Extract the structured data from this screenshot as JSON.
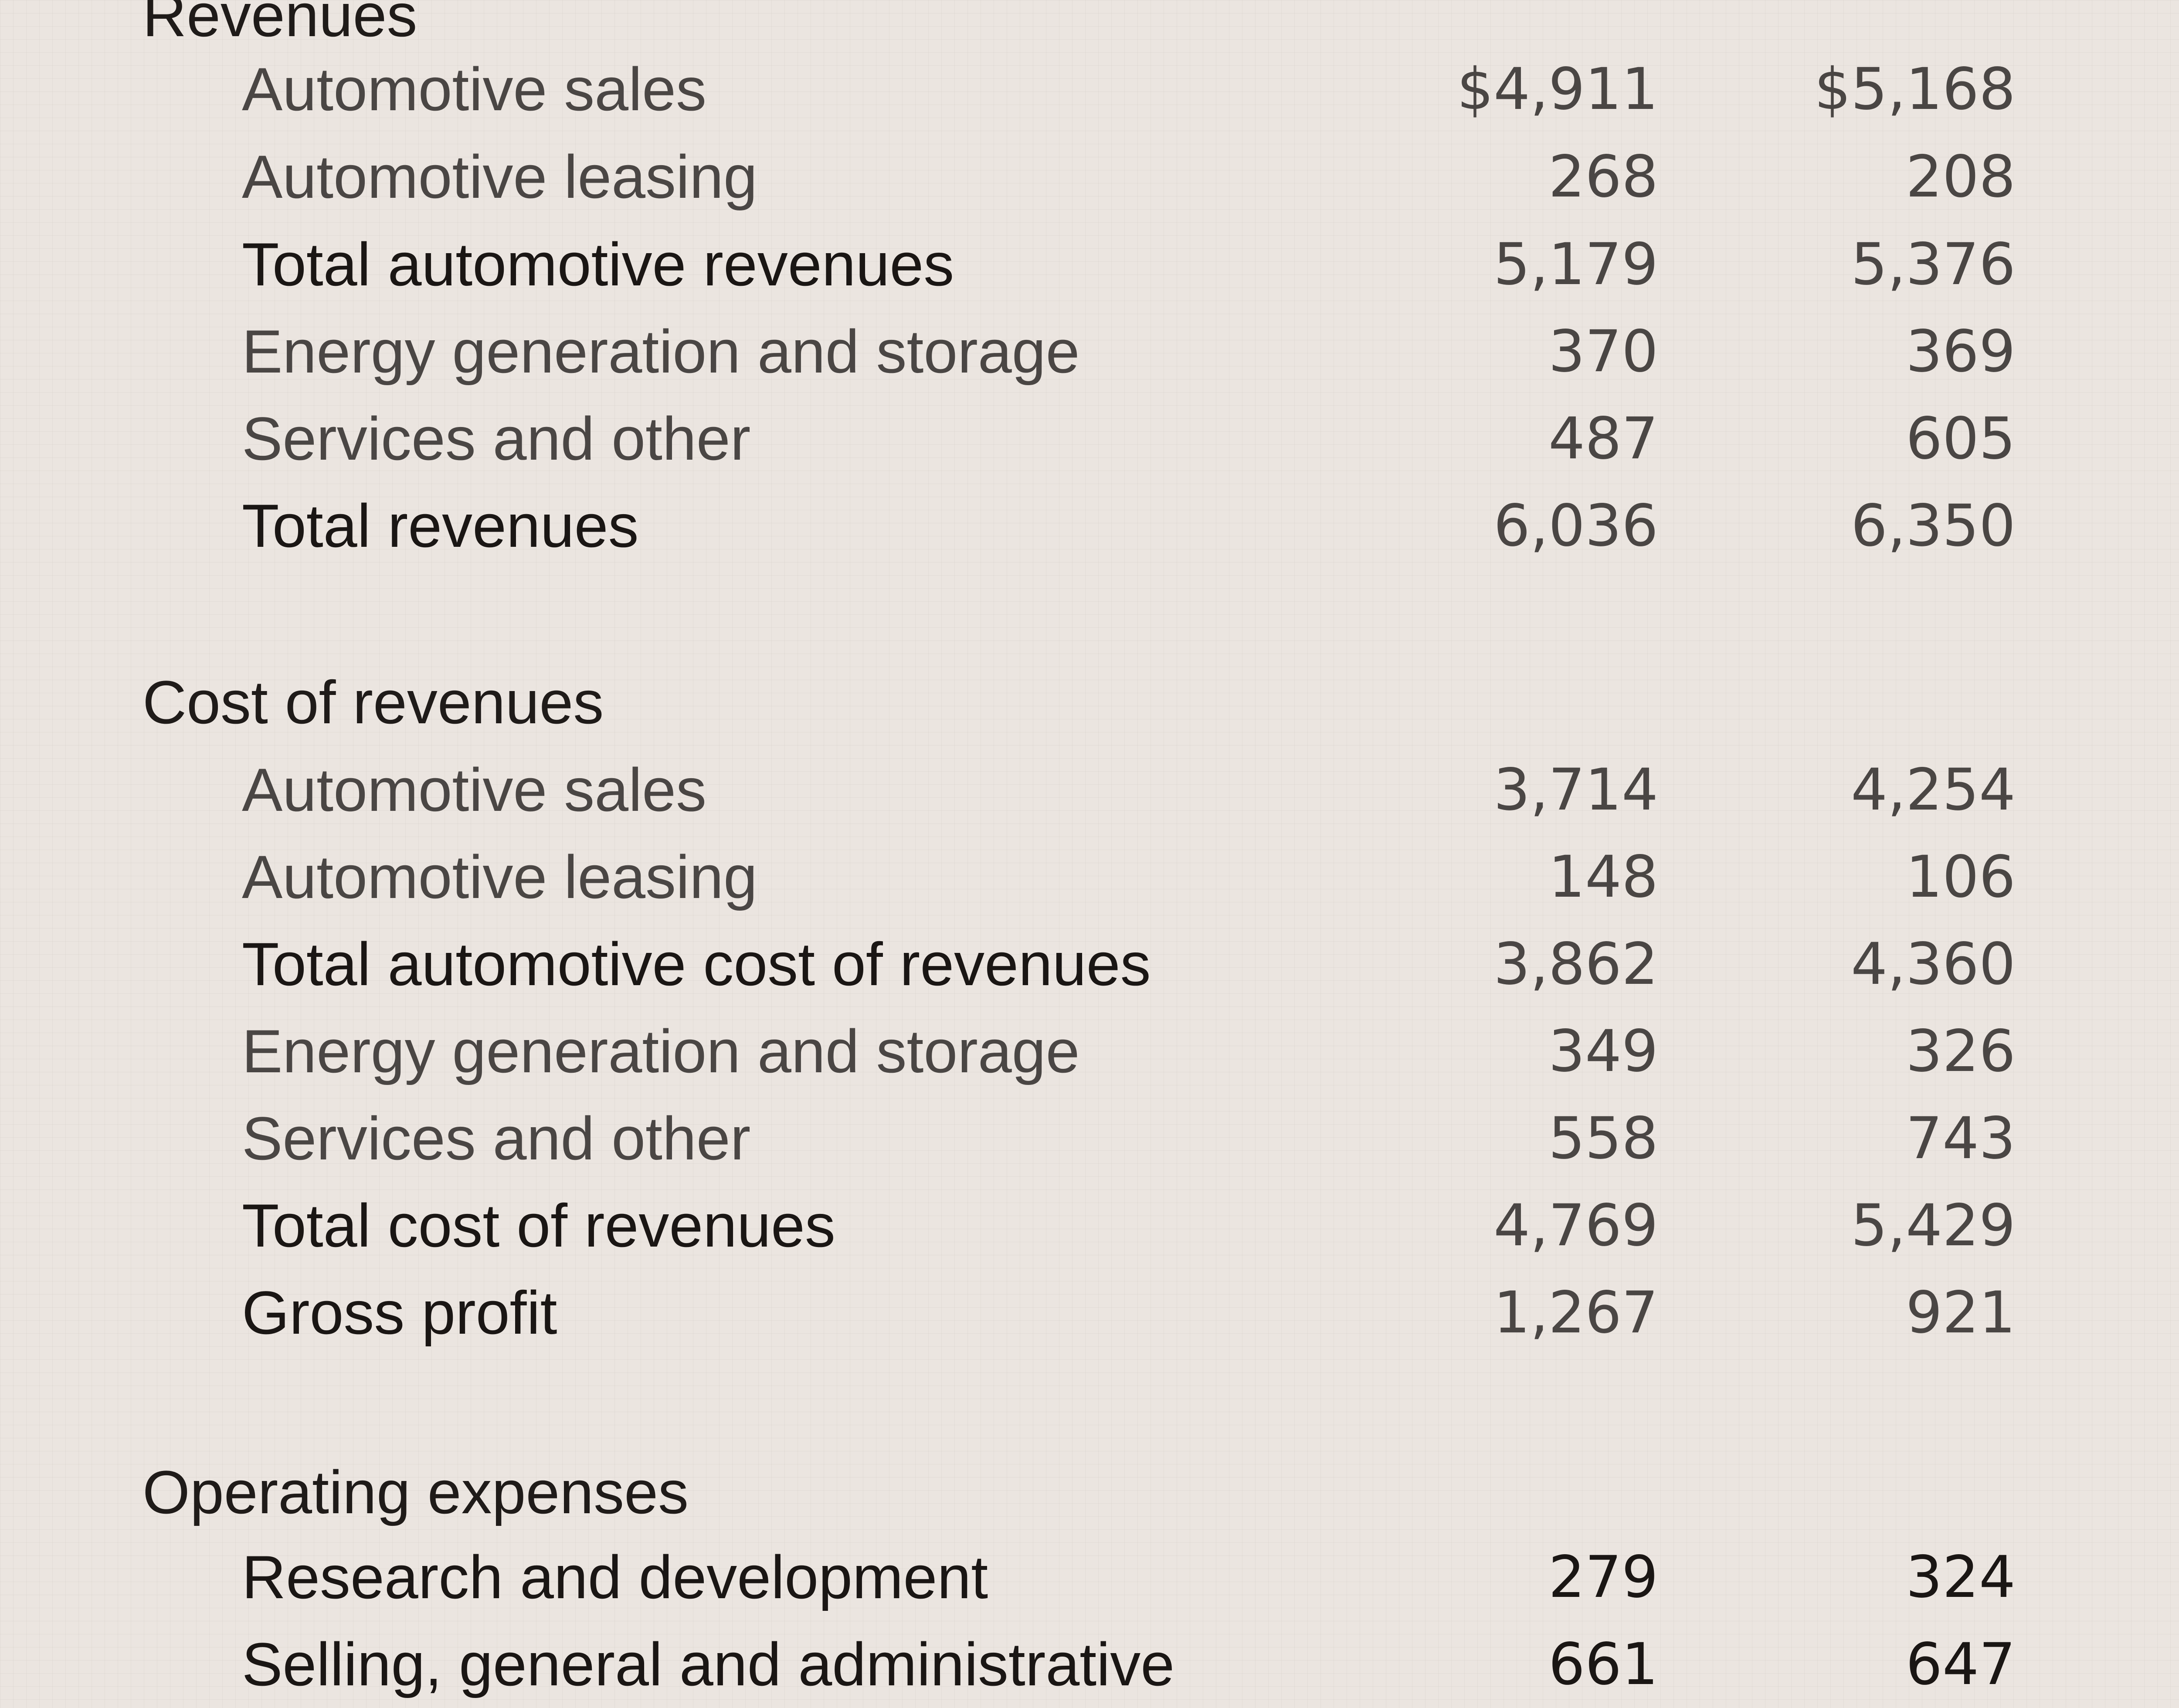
{
  "statement": {
    "sections": [
      {
        "heading": "Revenues",
        "rows": [
          {
            "label": "Automotive sales",
            "v1": "$4,911",
            "v2": "$5,168",
            "kind": "item"
          },
          {
            "label": "Automotive leasing",
            "v1": "268",
            "v2": "208",
            "kind": "item"
          },
          {
            "label": "Total automotive revenues",
            "v1": "5,179",
            "v2": "5,376",
            "kind": "total"
          },
          {
            "label": "Energy generation and storage",
            "v1": "370",
            "v2": "369",
            "kind": "item"
          },
          {
            "label": "Services and other",
            "v1": "487",
            "v2": "605",
            "kind": "item"
          },
          {
            "label": "Total revenues",
            "v1": "6,036",
            "v2": "6,350",
            "kind": "total"
          }
        ]
      },
      {
        "heading": "Cost of revenues",
        "rows": [
          {
            "label": "Automotive sales",
            "v1": "3,714",
            "v2": "4,254",
            "kind": "item"
          },
          {
            "label": "Automotive leasing",
            "v1": "148",
            "v2": "106",
            "kind": "item"
          },
          {
            "label": "Total automotive cost of revenues",
            "v1": "3,862",
            "v2": "4,360",
            "kind": "total"
          },
          {
            "label": "Energy generation and storage",
            "v1": "349",
            "v2": "326",
            "kind": "item"
          },
          {
            "label": "Services and other",
            "v1": "558",
            "v2": "743",
            "kind": "item"
          },
          {
            "label": "Total cost of revenues",
            "v1": "4,769",
            "v2": "5,429",
            "kind": "total"
          },
          {
            "label": "Gross profit",
            "v1": "1,267",
            "v2": "921",
            "kind": "total"
          }
        ]
      },
      {
        "heading": "Operating expenses",
        "rows": [
          {
            "label": "Research and development",
            "v1": "279",
            "v2": "324",
            "kind": "strong"
          },
          {
            "label": "Selling, general and administrative",
            "v1": "661",
            "v2": "647",
            "kind": "strong"
          }
        ]
      }
    ]
  }
}
